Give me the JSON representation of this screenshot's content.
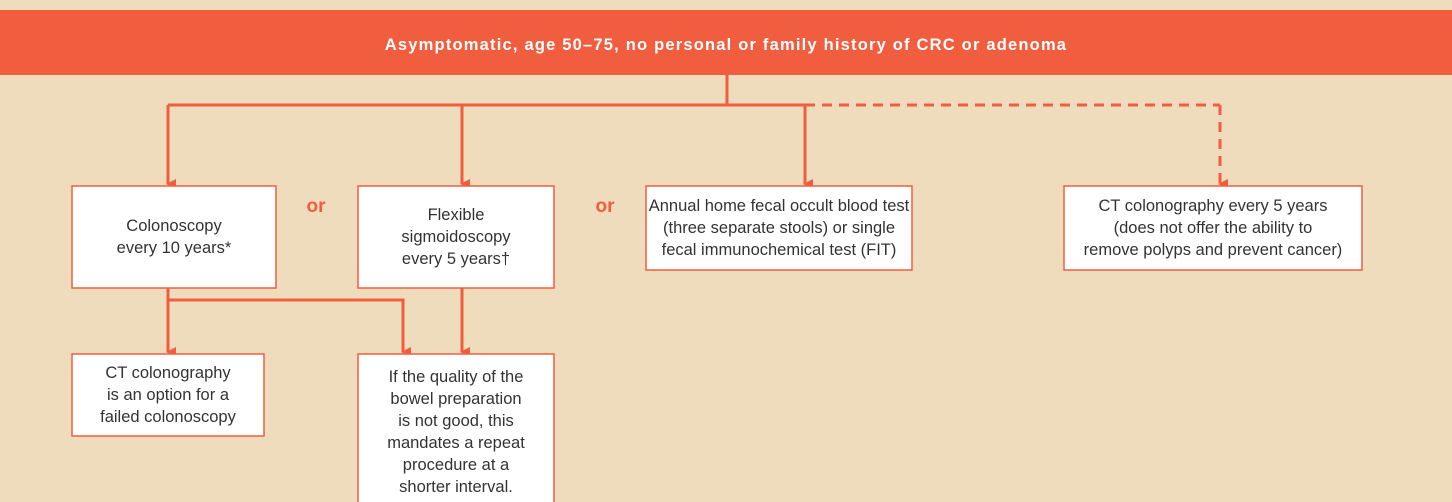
{
  "header": {
    "title": "Asymptomatic, age 50–75, no personal or family history of CRC or adenoma"
  },
  "nodes": [
    {
      "lines": [
        "Colonoscopy",
        "every 10 years*"
      ]
    },
    {
      "lines": [
        "Flexible",
        "sigmoidoscopy",
        "every 5 years†"
      ]
    },
    {
      "lines": [
        "Annual home fecal occult blood test",
        "(three separate stools) or single",
        "fecal immunochemical test (FIT)"
      ]
    },
    {
      "lines": [
        "CT colonography every 5 years",
        "(does not offer the ability to",
        "remove polyps and prevent cancer)"
      ]
    },
    {
      "lines": [
        "CT colonography",
        "is an option for a",
        "failed colonoscopy"
      ]
    },
    {
      "lines": [
        "If the quality of the",
        "bowel preparation",
        "is not good, this",
        "mandates a repeat",
        "procedure at a",
        "shorter interval."
      ]
    }
  ],
  "connectors": [
    "or",
    "or"
  ]
}
